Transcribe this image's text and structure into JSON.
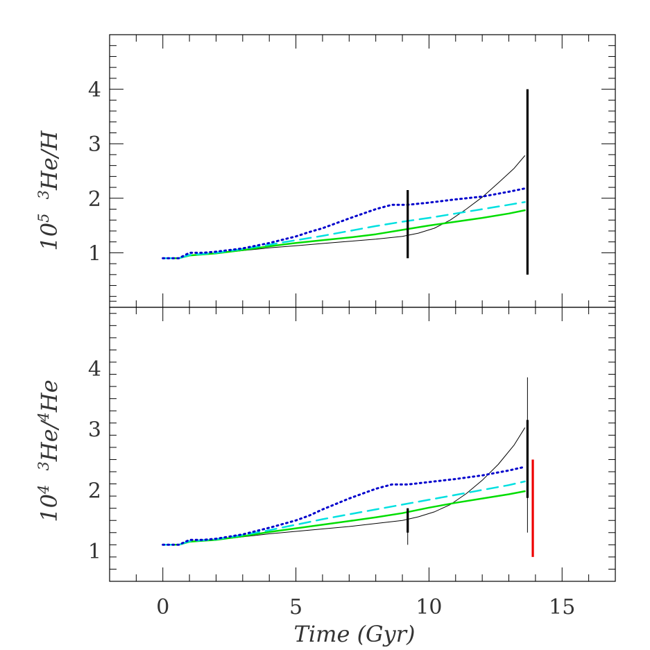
{
  "chart_data": [
    {
      "type": "line",
      "panel": "top",
      "ylabel": "10^5 3He/H",
      "ylabel_parts": {
        "coef": "10",
        "exp": "5",
        "iso": "3",
        "text": "He/H"
      },
      "x_range": [
        -2,
        17
      ],
      "ylim": [
        0,
        5
      ],
      "x_ticks": [
        0,
        5,
        10,
        15
      ],
      "y_ticks": [
        1,
        2,
        3,
        4
      ],
      "series": [
        {
          "style": "solid-thin",
          "color": "#000000",
          "x": [
            0,
            0.6,
            1,
            2,
            3,
            4,
            5,
            6,
            7,
            8,
            9,
            9.6,
            10.2,
            10.8,
            11.4,
            12,
            12.6,
            13.2,
            13.6
          ],
          "y": [
            0.9,
            0.9,
            0.95,
            0.99,
            1.04,
            1.09,
            1.13,
            1.17,
            1.21,
            1.25,
            1.3,
            1.36,
            1.45,
            1.6,
            1.8,
            2.02,
            2.28,
            2.55,
            2.78
          ]
        },
        {
          "style": "solid",
          "color": "#00dd00",
          "x": [
            0,
            0.6,
            1,
            2,
            3,
            4,
            5,
            6,
            7,
            8,
            9,
            10,
            11,
            12,
            13,
            13.6
          ],
          "y": [
            0.9,
            0.9,
            0.95,
            0.99,
            1.05,
            1.12,
            1.18,
            1.23,
            1.28,
            1.34,
            1.42,
            1.5,
            1.57,
            1.64,
            1.72,
            1.78
          ]
        },
        {
          "style": "dashed",
          "color": "#00e0e0",
          "x": [
            0,
            0.6,
            1,
            2,
            3,
            4,
            5,
            6,
            7,
            8,
            9,
            10,
            11,
            12,
            13,
            13.6
          ],
          "y": [
            0.9,
            0.9,
            0.96,
            1.0,
            1.07,
            1.15,
            1.23,
            1.31,
            1.4,
            1.49,
            1.57,
            1.64,
            1.72,
            1.8,
            1.88,
            1.93
          ]
        },
        {
          "style": "dotted",
          "color": "#0000cc",
          "x": [
            0,
            0.6,
            1,
            1.5,
            2,
            3,
            4,
            5,
            5.5,
            6,
            7,
            8,
            8.6,
            9.2,
            10,
            11,
            12,
            13,
            13.6
          ],
          "y": [
            0.9,
            0.9,
            1.0,
            1.0,
            1.02,
            1.08,
            1.18,
            1.3,
            1.38,
            1.45,
            1.63,
            1.8,
            1.88,
            1.88,
            1.92,
            1.98,
            2.03,
            2.12,
            2.18
          ]
        }
      ],
      "error_bars": [
        {
          "x": 9.2,
          "low": 0.9,
          "high": 2.15,
          "color": "#000000",
          "weight": "thick"
        },
        {
          "x": 13.7,
          "low": 0.6,
          "high": 4.0,
          "color": "#000000",
          "weight": "thick"
        }
      ]
    },
    {
      "type": "line",
      "panel": "bottom",
      "ylabel": "10^4 3He/4He",
      "ylabel_parts": {
        "coef": "10",
        "exp": "4",
        "iso": "3",
        "text": "He/",
        "iso2": "4",
        "text2": "He"
      },
      "xlabel": "Time (Gyr)",
      "x_range": [
        -2,
        17
      ],
      "ylim": [
        0.5,
        5
      ],
      "x_ticks": [
        0,
        5,
        10,
        15
      ],
      "y_ticks": [
        1,
        2,
        3,
        4
      ],
      "series": [
        {
          "style": "solid-thin",
          "color": "#000000",
          "x": [
            0,
            0.6,
            1,
            2,
            3,
            4,
            5,
            6,
            7,
            8,
            9,
            9.6,
            10.2,
            10.8,
            11.4,
            12,
            12.6,
            13.2,
            13.6
          ],
          "y": [
            1.1,
            1.1,
            1.15,
            1.18,
            1.23,
            1.28,
            1.32,
            1.36,
            1.4,
            1.45,
            1.5,
            1.56,
            1.64,
            1.76,
            1.94,
            2.16,
            2.42,
            2.74,
            3.02
          ]
        },
        {
          "style": "solid",
          "color": "#00dd00",
          "x": [
            0,
            0.6,
            1,
            2,
            3,
            4,
            5,
            6,
            7,
            8,
            9,
            10,
            11,
            12,
            13,
            13.6
          ],
          "y": [
            1.1,
            1.1,
            1.15,
            1.18,
            1.24,
            1.31,
            1.37,
            1.43,
            1.49,
            1.55,
            1.62,
            1.71,
            1.79,
            1.86,
            1.93,
            1.98
          ]
        },
        {
          "style": "dashed",
          "color": "#00e0e0",
          "x": [
            0,
            0.6,
            1,
            2,
            3,
            4,
            5,
            6,
            7,
            8,
            9,
            10,
            11,
            12,
            13,
            13.6
          ],
          "y": [
            1.1,
            1.1,
            1.16,
            1.19,
            1.26,
            1.34,
            1.43,
            1.52,
            1.6,
            1.68,
            1.76,
            1.84,
            1.92,
            2.0,
            2.08,
            2.14
          ]
        },
        {
          "style": "dotted",
          "color": "#0000cc",
          "x": [
            0,
            0.6,
            1,
            1.5,
            2,
            3,
            4,
            5,
            5.5,
            6,
            7,
            8,
            8.6,
            9.2,
            10,
            11,
            12,
            13,
            13.6
          ],
          "y": [
            1.1,
            1.1,
            1.18,
            1.18,
            1.2,
            1.27,
            1.38,
            1.5,
            1.58,
            1.68,
            1.86,
            2.02,
            2.09,
            2.09,
            2.13,
            2.18,
            2.24,
            2.32,
            2.38
          ]
        }
      ],
      "error_bars": [
        {
          "x": 9.2,
          "low": 1.1,
          "high": 1.7,
          "color": "#000000",
          "weight": "thin"
        },
        {
          "x": 9.2,
          "low": 1.3,
          "high": 1.7,
          "color": "#000000",
          "weight": "thick"
        },
        {
          "x": 13.7,
          "low": 1.3,
          "high": 3.85,
          "color": "#000000",
          "weight": "thin"
        },
        {
          "x": 13.7,
          "low": 1.87,
          "high": 3.15,
          "color": "#000000",
          "weight": "thick"
        },
        {
          "x": 13.9,
          "low": 0.9,
          "high": 2.5,
          "color": "#ee0000",
          "weight": "thick"
        }
      ]
    }
  ]
}
